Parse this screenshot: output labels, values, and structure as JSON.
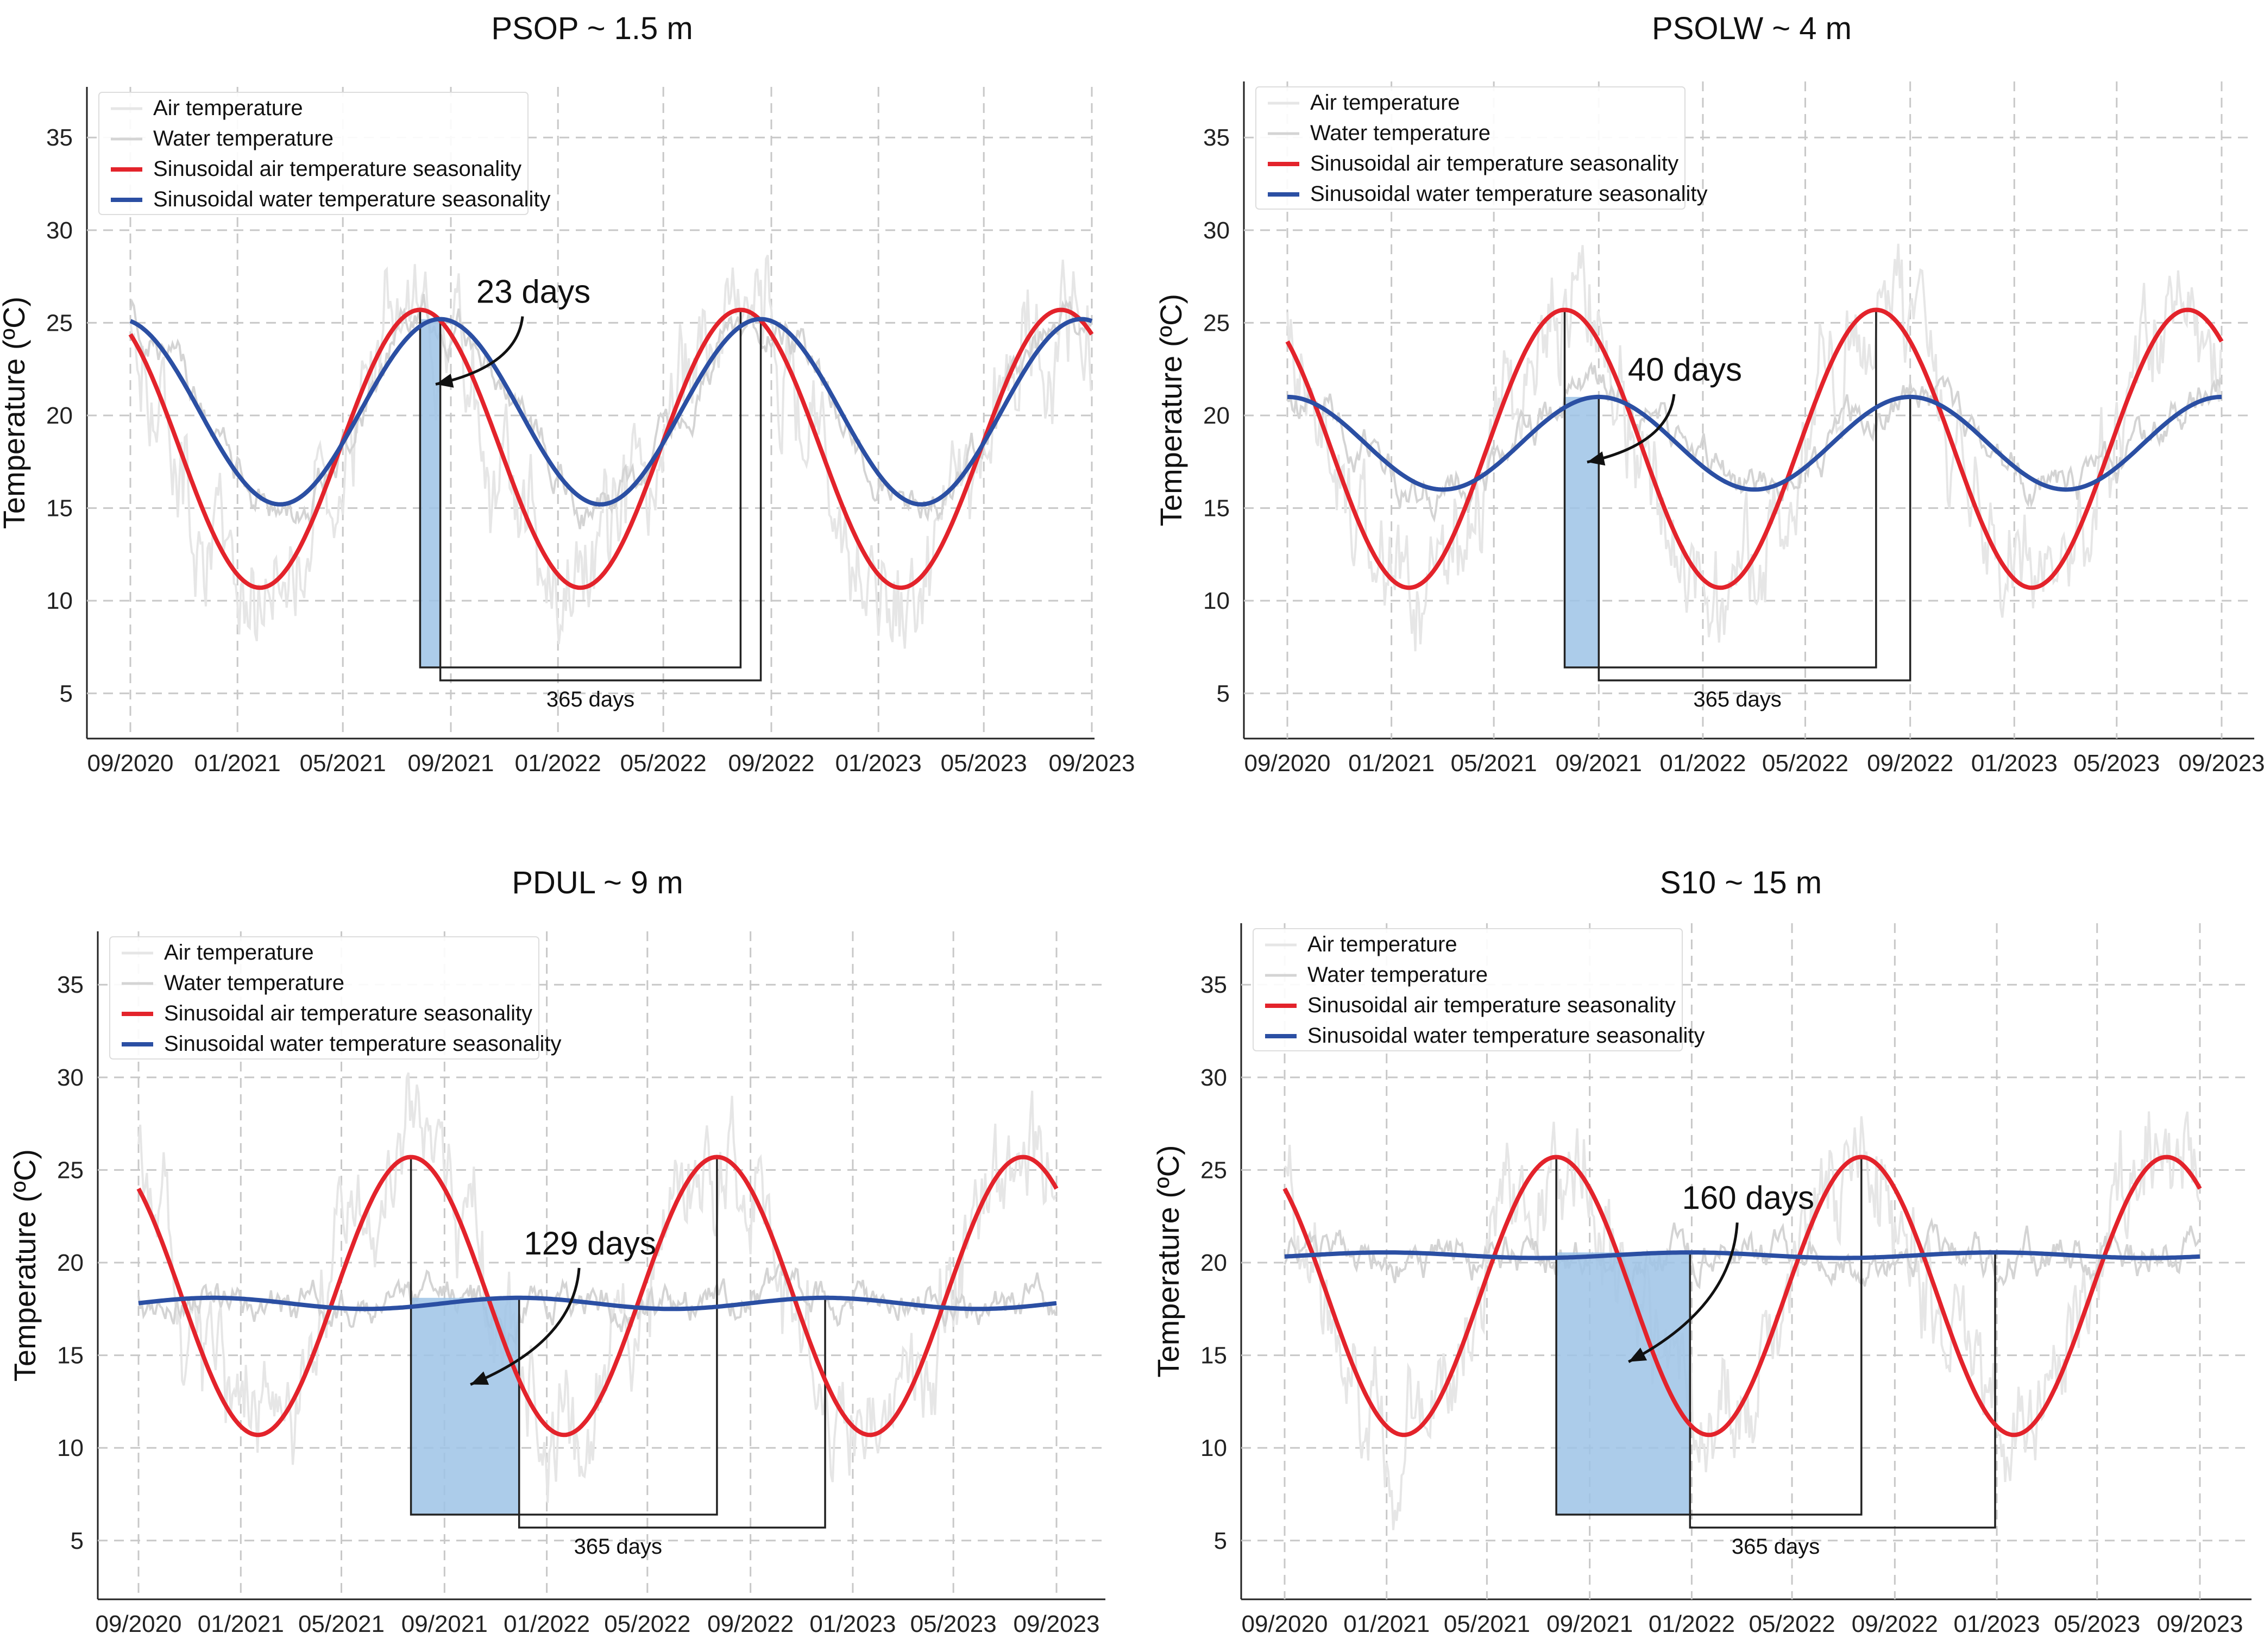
{
  "chart_data": [
    {
      "type": "line",
      "title": "PSOP ~ 1.5 m",
      "xlabel": "",
      "ylabel": "Temperature (ºC)",
      "xlim": [
        0,
        1095
      ],
      "ylim": [
        3,
        37
      ],
      "x_ticks": [
        {
          "label": "09/2020",
          "value": 0
        },
        {
          "label": "01/2021",
          "value": 122
        },
        {
          "label": "05/2021",
          "value": 242
        },
        {
          "label": "09/2021",
          "value": 365
        },
        {
          "label": "01/2022",
          "value": 487
        },
        {
          "label": "05/2022",
          "value": 607
        },
        {
          "label": "09/2022",
          "value": 730
        },
        {
          "label": "01/2023",
          "value": 852
        },
        {
          "label": "05/2023",
          "value": 972
        },
        {
          "label": "09/2023",
          "value": 1095
        }
      ],
      "y_ticks": [
        5,
        10,
        15,
        20,
        25,
        30,
        35
      ],
      "legend": [
        "Air temperature",
        "Water temperature",
        "Sinusoidal air temperature seasonality",
        "Sinusoidal water temperature seasonality"
      ],
      "legend_position": "top-left",
      "colors": {
        "air_raw": "#e6e6e6",
        "water_raw": "#d4d4d4",
        "air_fit": "#e3232b",
        "water_fit": "#2b4fa3",
        "lag_fill": "#9dc3e6"
      },
      "series": [
        {
          "name": "Sinusoidal air temperature seasonality",
          "mean": 18.2,
          "amplitude": 7.5,
          "peak_day": 330
        },
        {
          "name": "Sinusoidal water temperature seasonality",
          "mean": 20.2,
          "amplitude": 5.0,
          "peak_day": 353
        }
      ],
      "annotations": {
        "lag_label": "23 days",
        "lag_days": 23,
        "period_label": "365 days",
        "period_days": 365
      }
    },
    {
      "type": "line",
      "title": "PSOLW ~ 4 m",
      "xlabel": "",
      "ylabel": "Temperature (ºC)",
      "xlim": [
        0,
        1095
      ],
      "ylim": [
        3,
        37
      ],
      "x_ticks": [
        {
          "label": "09/2020",
          "value": 0
        },
        {
          "label": "01/2021",
          "value": 122
        },
        {
          "label": "05/2021",
          "value": 242
        },
        {
          "label": "09/2021",
          "value": 365
        },
        {
          "label": "01/2022",
          "value": 487
        },
        {
          "label": "05/2022",
          "value": 607
        },
        {
          "label": "09/2022",
          "value": 730
        },
        {
          "label": "01/2023",
          "value": 852
        },
        {
          "label": "05/2023",
          "value": 972
        },
        {
          "label": "09/2023",
          "value": 1095
        }
      ],
      "y_ticks": [
        5,
        10,
        15,
        20,
        25,
        30,
        35
      ],
      "legend": [
        "Air temperature",
        "Water temperature",
        "Sinusoidal air temperature seasonality",
        "Sinusoidal water temperature seasonality"
      ],
      "legend_position": "top-left",
      "colors": {
        "air_raw": "#e6e6e6",
        "water_raw": "#d4d4d4",
        "air_fit": "#e3232b",
        "water_fit": "#2b4fa3",
        "lag_fill": "#9dc3e6"
      },
      "series": [
        {
          "name": "Sinusoidal air temperature seasonality",
          "mean": 18.2,
          "amplitude": 7.5,
          "peak_day": 325
        },
        {
          "name": "Sinusoidal water temperature seasonality",
          "mean": 18.5,
          "amplitude": 2.5,
          "peak_day": 365
        }
      ],
      "annotations": {
        "lag_label": "40 days",
        "lag_days": 40,
        "period_label": "365 days",
        "period_days": 365
      }
    },
    {
      "type": "line",
      "title": "PDUL ~ 9 m",
      "xlabel": "",
      "ylabel": "Temperature (ºC)",
      "xlim": [
        0,
        1095
      ],
      "ylim": [
        3,
        37
      ],
      "x_ticks": [
        {
          "label": "09/2020",
          "value": 0
        },
        {
          "label": "01/2021",
          "value": 122
        },
        {
          "label": "05/2021",
          "value": 242
        },
        {
          "label": "09/2021",
          "value": 365
        },
        {
          "label": "01/2022",
          "value": 487
        },
        {
          "label": "05/2022",
          "value": 607
        },
        {
          "label": "09/2022",
          "value": 730
        },
        {
          "label": "01/2023",
          "value": 852
        },
        {
          "label": "05/2023",
          "value": 972
        },
        {
          "label": "09/2023",
          "value": 1095
        }
      ],
      "y_ticks": [
        5,
        10,
        15,
        20,
        25,
        30,
        35
      ],
      "legend": [
        "Air temperature",
        "Water temperature",
        "Sinusoidal air temperature seasonality",
        "Sinusoidal water temperature seasonality"
      ],
      "legend_position": "top-left",
      "colors": {
        "air_raw": "#e6e6e6",
        "water_raw": "#d4d4d4",
        "air_fit": "#e3232b",
        "water_fit": "#2b4fa3",
        "lag_fill": "#9dc3e6"
      },
      "series": [
        {
          "name": "Sinusoidal air temperature seasonality",
          "mean": 18.2,
          "amplitude": 7.5,
          "peak_day": 325
        },
        {
          "name": "Sinusoidal water temperature seasonality",
          "mean": 17.8,
          "amplitude": 0.3,
          "peak_day": 454
        }
      ],
      "annotations": {
        "lag_label": "129 days",
        "lag_days": 129,
        "period_label": "365 days",
        "period_days": 365
      }
    },
    {
      "type": "line",
      "title": "S10 ~ 15 m",
      "xlabel": "",
      "ylabel": "Temperature (ºC)",
      "xlim": [
        0,
        1095
      ],
      "ylim": [
        3,
        37
      ],
      "x_ticks": [
        {
          "label": "09/2020",
          "value": 0
        },
        {
          "label": "01/2021",
          "value": 122
        },
        {
          "label": "05/2021",
          "value": 242
        },
        {
          "label": "09/2021",
          "value": 365
        },
        {
          "label": "01/2022",
          "value": 487
        },
        {
          "label": "05/2022",
          "value": 607
        },
        {
          "label": "09/2022",
          "value": 730
        },
        {
          "label": "01/2023",
          "value": 852
        },
        {
          "label": "05/2023",
          "value": 972
        },
        {
          "label": "09/2023",
          "value": 1095
        }
      ],
      "y_ticks": [
        5,
        10,
        15,
        20,
        25,
        30,
        35
      ],
      "legend": [
        "Air temperature",
        "Water temperature",
        "Sinusoidal air temperature seasonality",
        "Sinusoidal water temperature seasonality"
      ],
      "legend_position": "top-left",
      "colors": {
        "air_raw": "#e6e6e6",
        "water_raw": "#d4d4d4",
        "air_fit": "#e3232b",
        "water_fit": "#2b4fa3",
        "lag_fill": "#9dc3e6"
      },
      "series": [
        {
          "name": "Sinusoidal air temperature seasonality",
          "mean": 18.2,
          "amplitude": 7.5,
          "peak_day": 325
        },
        {
          "name": "Sinusoidal water temperature seasonality",
          "mean": 20.4,
          "amplitude": 0.15,
          "peak_day": 485
        }
      ],
      "annotations": {
        "lag_label": "160 days",
        "lag_days": 160,
        "period_label": "365 days",
        "period_days": 365
      }
    }
  ]
}
